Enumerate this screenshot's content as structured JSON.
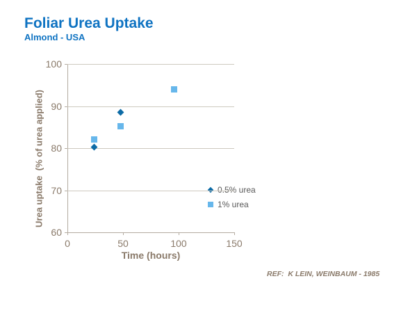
{
  "header": {
    "title": "Foliar Urea Uptake",
    "subtitle": "Almond - USA"
  },
  "chart_data": {
    "type": "scatter",
    "title": "Foliar Urea Uptake",
    "subtitle": "Almond - USA",
    "xlabel": "Time (hours)",
    "ylabel": "Urea uptake  (% of urea applied)",
    "xlim": [
      0,
      150
    ],
    "ylim": [
      60,
      100
    ],
    "xticks": [
      0,
      50,
      100,
      150
    ],
    "yticks": [
      60,
      70,
      80,
      90,
      100
    ],
    "grid": "horizontal gridlines at each y tick, light gray",
    "legend_position": "inside plot, right side at ~70% uptake level",
    "series": [
      {
        "name": "0.5% urea",
        "marker": "diamond",
        "color": "#0d6ba6",
        "points": [
          [
            24,
            80.3
          ],
          [
            48,
            88.5
          ]
        ]
      },
      {
        "name": "1% urea",
        "marker": "square",
        "color": "#67b7eb",
        "points": [
          [
            24,
            82
          ],
          [
            48,
            85.2
          ],
          [
            96,
            94
          ]
        ]
      }
    ]
  },
  "footer": {
    "reference": "REF:  K LEIN, WEINBAUM - 1985"
  },
  "colors": {
    "title_blue": "#0f73c2",
    "axis_text_brown": "#8a7a6a",
    "gridline_gray": "#cdc9bf",
    "axis_line_gray": "#b3aba0",
    "legend_text_gray": "#595959",
    "series_half_percent_blue": "#0d6ba6",
    "series_one_percent_blue": "#67b7eb",
    "background": "#ffffff"
  }
}
